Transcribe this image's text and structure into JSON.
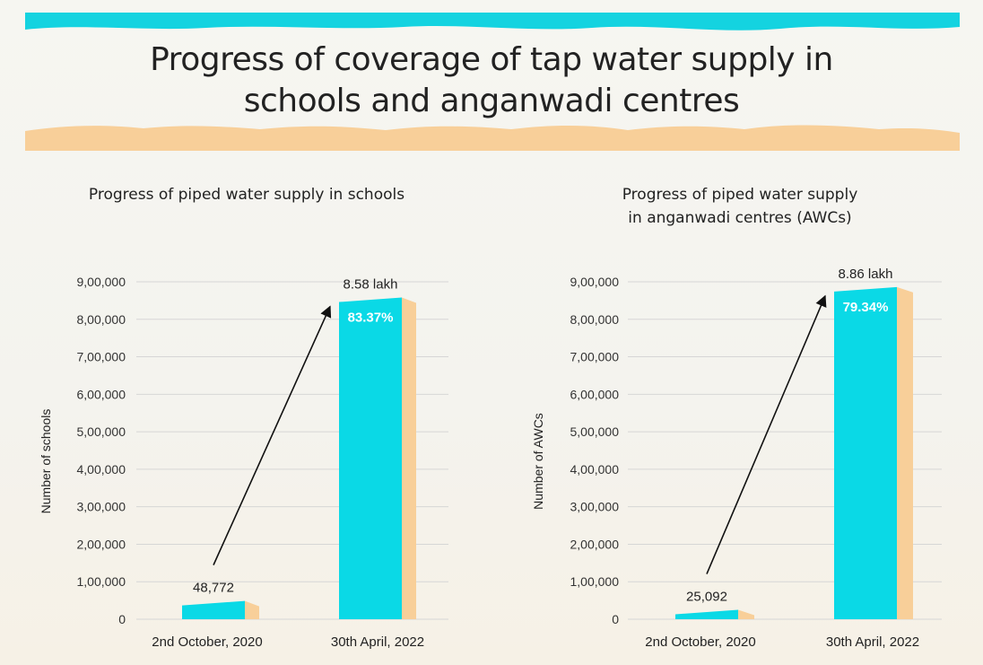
{
  "page": {
    "title_line1": "Progress of coverage of tap water supply in",
    "title_line2": "schools and anganwadi centres"
  },
  "colors": {
    "bar": "#0ad9e6",
    "bar_side": "#f8cf99",
    "sand": "#f8cf99",
    "water": "#14d3e0",
    "grid": "#d6d6d6"
  },
  "chart_data": [
    {
      "type": "bar",
      "title_line1": "Progress of piped water supply in schools",
      "title_line2": "",
      "ylabel": "Number of schools",
      "xlabel": "",
      "ylim": [
        0,
        900000
      ],
      "yticks": [
        0,
        100000,
        200000,
        300000,
        400000,
        500000,
        600000,
        700000,
        800000,
        900000
      ],
      "ytick_labels": [
        "0",
        "1,00,000",
        "2,00,000",
        "3,00,000",
        "4,00,000",
        "5,00,000",
        "6,00,000",
        "7,00,000",
        "8,00,000",
        "9,00,000"
      ],
      "categories": [
        "2nd October, 2020",
        "30th April, 2022"
      ],
      "values": [
        48772,
        858000
      ],
      "value_labels": [
        "48,772",
        "8.58 lakh"
      ],
      "inner_labels": [
        "",
        "83.37%"
      ],
      "grid": true
    },
    {
      "type": "bar",
      "title_line1": "Progress of piped water supply",
      "title_line2": "in anganwadi centres (AWCs)",
      "ylabel": "Number of AWCs",
      "xlabel": "",
      "ylim": [
        0,
        900000
      ],
      "yticks": [
        0,
        100000,
        200000,
        300000,
        400000,
        500000,
        600000,
        700000,
        800000,
        900000
      ],
      "ytick_labels": [
        "0",
        "1,00,000",
        "2,00,000",
        "3,00,000",
        "4,00,000",
        "5,00,000",
        "6,00,000",
        "7,00,000",
        "8,00,000",
        "9,00,000"
      ],
      "categories": [
        "2nd October, 2020",
        "30th April, 2022"
      ],
      "values": [
        25092,
        886000
      ],
      "value_labels": [
        "25,092",
        "8.86 lakh"
      ],
      "inner_labels": [
        "",
        "79.34%"
      ],
      "grid": true
    }
  ]
}
